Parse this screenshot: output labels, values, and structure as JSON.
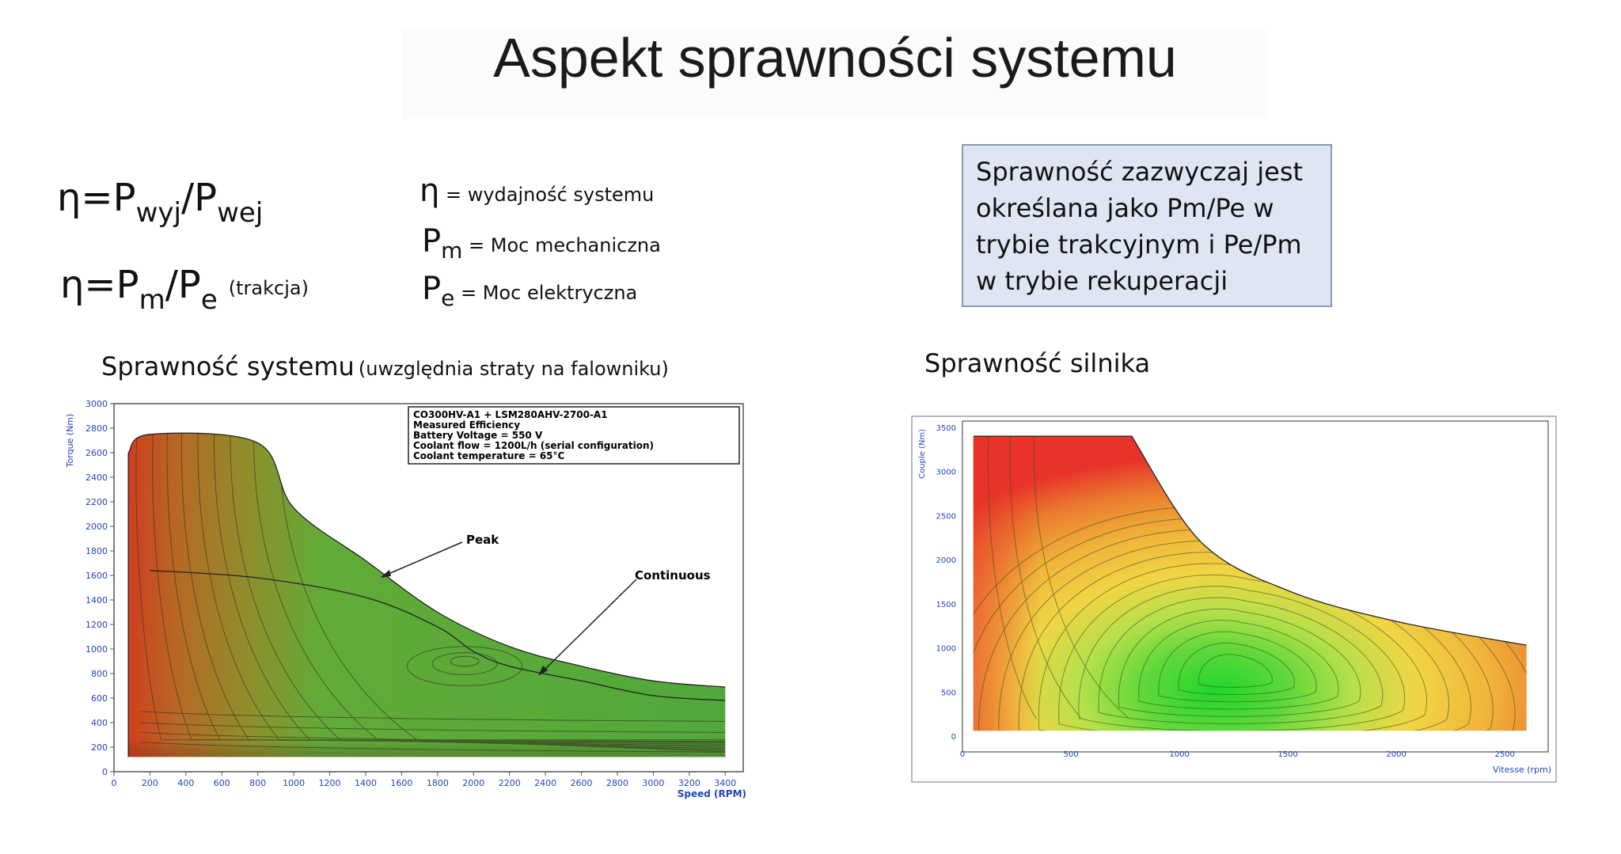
{
  "header": {
    "title": "Aspekt sprawności systemu"
  },
  "formulas": {
    "f1": {
      "lhs": "η=P",
      "sub1": "wyj",
      "mid": "/P",
      "sub2": "wej"
    },
    "f2": {
      "lhs": "η=P",
      "sub1": "m",
      "mid": "/P",
      "sub2": "e",
      "note": "(trakcja)"
    }
  },
  "legend": [
    {
      "symbol": "η",
      "sub": "",
      "text": " = wydajność systemu"
    },
    {
      "symbol": "P",
      "sub": "m",
      "text": " = Moc mechaniczna"
    },
    {
      "symbol": "P",
      "sub": "e",
      "text": " = Moc elektryczna"
    }
  ],
  "note": {
    "lines": [
      "Sprawność zazwyczaj jest",
      "określana jako Pm/Pe w",
      "trybie trakcyjnym i Pe/Pm",
      "w trybie rekuperacji"
    ]
  },
  "captions": {
    "left_main": "Sprawność systemu",
    "left_note": "(uwzględnia straty na falowniku)",
    "right": "Sprawność silnika"
  },
  "chart_data": [
    {
      "type": "heatmap",
      "title": "",
      "xlabel": "Speed (RPM)",
      "ylabel": "Torque (Nm)",
      "xlim": [
        0,
        3500
      ],
      "ylim": [
        0,
        3000
      ],
      "x_ticks": [
        0,
        200,
        400,
        600,
        800,
        1000,
        1200,
        1400,
        1600,
        1800,
        2000,
        2200,
        2400,
        2600,
        2800,
        3000,
        3200,
        3400
      ],
      "y_ticks": [
        0,
        200,
        400,
        600,
        800,
        1000,
        1200,
        1400,
        1600,
        1800,
        2000,
        2200,
        2400,
        2600,
        2800,
        3000
      ],
      "info_box": [
        "CO300HV-A1 + LSM280AHV-2700-A1",
        "Measured Efficiency",
        "Battery Voltage = 550 V",
        "Coolant flow = 1200L/h (serial configuration)",
        "Coolant temperature = 65°C"
      ],
      "annotations": [
        "Peak",
        "Continuous"
      ],
      "peak_curve": {
        "x": [
          80,
          200,
          800,
          1000,
          1400,
          1800,
          2200,
          2600,
          3000,
          3400
        ],
        "y": [
          2600,
          2750,
          2680,
          2150,
          1720,
          1300,
          1020,
          860,
          740,
          690
        ]
      },
      "continuous_curve": {
        "x": [
          200,
          800,
          1400,
          1800,
          2000,
          2200,
          2600,
          3000,
          3400
        ],
        "y": [
          1640,
          1580,
          1420,
          1180,
          980,
          860,
          740,
          620,
          580
        ]
      },
      "color_scale": {
        "low": "#e02b1e",
        "mid": "#b07d26",
        "high": "#5fae3a"
      }
    },
    {
      "type": "heatmap",
      "title": "",
      "xlabel": "Vitesse (rpm)",
      "ylabel": "Couple (Nm)",
      "xlim": [
        0,
        2700
      ],
      "ylim": [
        0,
        3500
      ],
      "x_ticks": [
        0,
        500,
        1000,
        1500,
        2000,
        2500
      ],
      "y_ticks": [
        0,
        500,
        1000,
        1500,
        2000,
        2500,
        3000,
        3500
      ],
      "peak_curve": {
        "x": [
          50,
          780,
          1100,
          1500,
          2000,
          2600
        ],
        "y": [
          3400,
          3400,
          2200,
          1650,
          1300,
          1030
        ]
      },
      "optimum_point": {
        "x": 1250,
        "y": 700
      },
      "color_scale": {
        "low": "#e8332a",
        "mid": "#f1b43a",
        "high": "#1fd62a"
      }
    }
  ]
}
